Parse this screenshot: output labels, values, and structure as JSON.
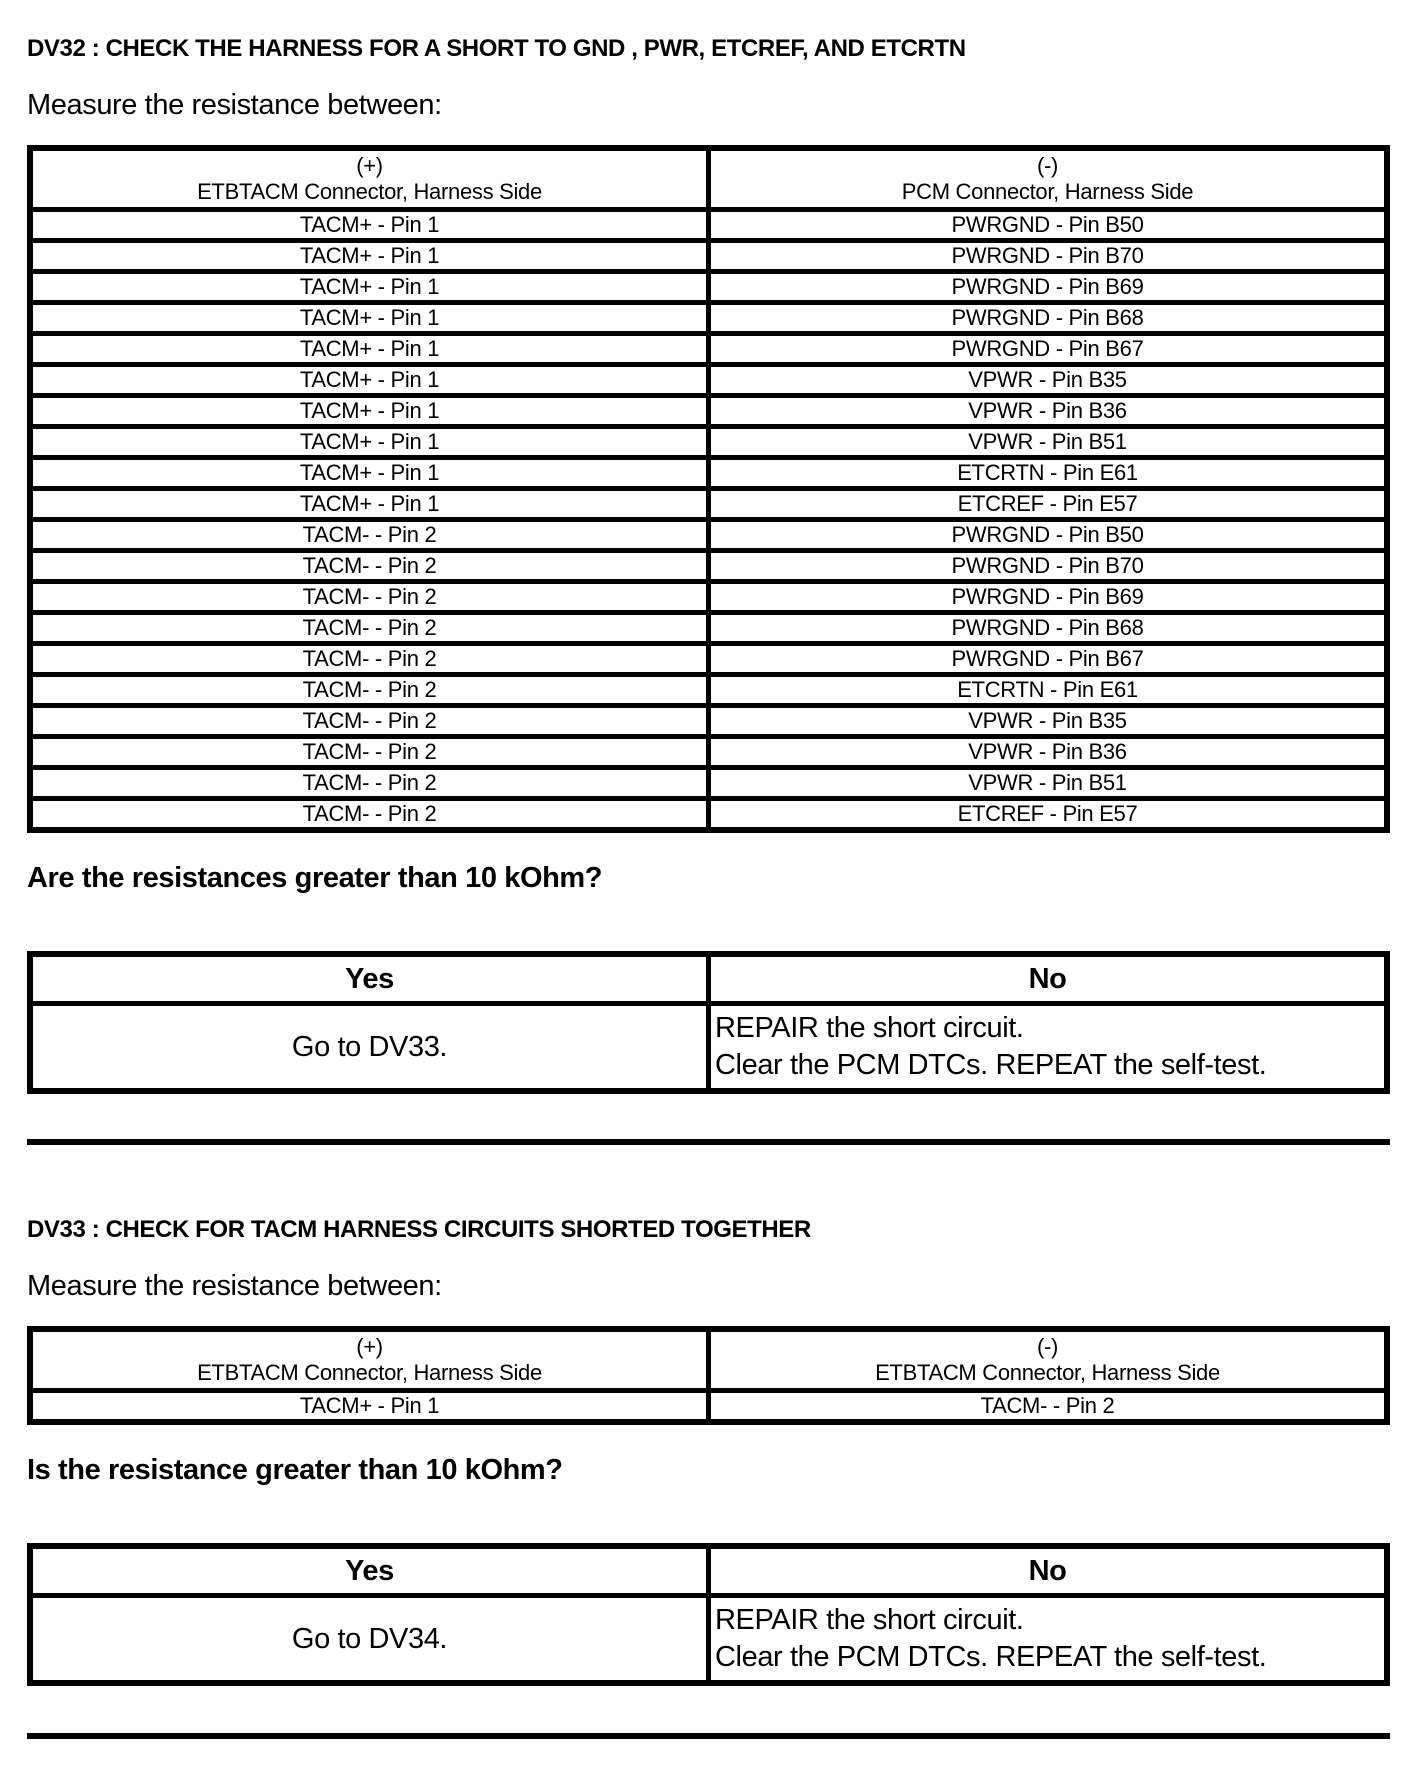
{
  "colors": {
    "background": "#ffffff",
    "text": "#000000",
    "border": "#000000"
  },
  "dv32": {
    "heading": "DV32 : CHECK THE HARNESS FOR A SHORT TO GND , PWR, ETCREF, AND ETCRTN",
    "instruction": "Measure the resistance between:",
    "measure_table": {
      "columns": [
        {
          "sign": "(+)",
          "label": "ETBTACM Connector, Harness Side"
        },
        {
          "sign": "(-)",
          "label": "PCM Connector, Harness Side"
        }
      ],
      "rows": [
        {
          "pos": "TACM+ - Pin 1",
          "neg": "PWRGND - Pin B50"
        },
        {
          "pos": "TACM+ - Pin 1",
          "neg": "PWRGND - Pin B70"
        },
        {
          "pos": "TACM+ - Pin 1",
          "neg": "PWRGND - Pin B69"
        },
        {
          "pos": "TACM+ - Pin 1",
          "neg": "PWRGND - Pin B68"
        },
        {
          "pos": "TACM+ - Pin 1",
          "neg": "PWRGND - Pin B67"
        },
        {
          "pos": "TACM+ - Pin 1",
          "neg": "VPWR - Pin B35"
        },
        {
          "pos": "TACM+ - Pin 1",
          "neg": "VPWR - Pin B36"
        },
        {
          "pos": "TACM+ - Pin 1",
          "neg": "VPWR - Pin B51"
        },
        {
          "pos": "TACM+ - Pin 1",
          "neg": "ETCRTN - Pin E61"
        },
        {
          "pos": "TACM+ - Pin 1",
          "neg": "ETCREF - Pin E57"
        },
        {
          "pos": "TACM- - Pin 2",
          "neg": "PWRGND - Pin B50"
        },
        {
          "pos": "TACM- - Pin 2",
          "neg": "PWRGND - Pin B70"
        },
        {
          "pos": "TACM- - Pin 2",
          "neg": "PWRGND - Pin B69"
        },
        {
          "pos": "TACM- - Pin 2",
          "neg": "PWRGND - Pin B68"
        },
        {
          "pos": "TACM- - Pin 2",
          "neg": "PWRGND - Pin B67"
        },
        {
          "pos": "TACM- - Pin 2",
          "neg": "ETCRTN - Pin E61"
        },
        {
          "pos": "TACM- - Pin 2",
          "neg": "VPWR - Pin B35"
        },
        {
          "pos": "TACM- - Pin 2",
          "neg": "VPWR - Pin B36"
        },
        {
          "pos": "TACM- - Pin 2",
          "neg": "VPWR - Pin B51"
        },
        {
          "pos": "TACM- - Pin 2",
          "neg": "ETCREF - Pin E57"
        }
      ]
    },
    "question": "Are the resistances greater than 10 kOhm?",
    "decision": {
      "yes_header": "Yes",
      "no_header": "No",
      "yes_action": "Go to DV33.",
      "no_action_lines": [
        "REPAIR the short circuit.",
        "Clear the PCM DTCs. REPEAT the self-test."
      ]
    }
  },
  "dv33": {
    "heading": "DV33 : CHECK FOR TACM HARNESS CIRCUITS SHORTED TOGETHER",
    "instruction": "Measure the resistance between:",
    "measure_table": {
      "columns": [
        {
          "sign": "(+)",
          "label": "ETBTACM Connector, Harness Side"
        },
        {
          "sign": "(-)",
          "label": "ETBTACM Connector, Harness Side"
        }
      ],
      "rows": [
        {
          "pos": "TACM+ - Pin 1",
          "neg": "TACM- - Pin 2"
        }
      ]
    },
    "question": "Is the resistance greater than 10 kOhm?",
    "decision": {
      "yes_header": "Yes",
      "no_header": "No",
      "yes_action": "Go to DV34.",
      "no_action_lines": [
        "REPAIR the short circuit.",
        "Clear the PCM DTCs. REPEAT the self-test."
      ]
    }
  }
}
